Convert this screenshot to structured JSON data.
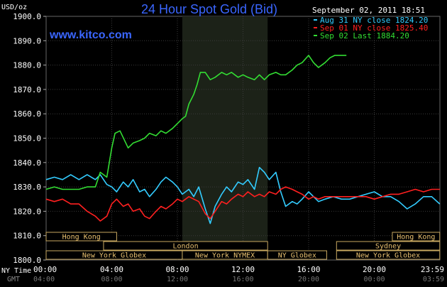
{
  "chart_data": {
    "type": "line",
    "title": "24 Hour Spot Gold (Bid)",
    "watermark": "www.kitco.com",
    "ylabel": "USD/oz",
    "ylim": [
      1800,
      1900
    ],
    "yticks": [
      "1800.0",
      "1810.0",
      "1820.0",
      "1830.0",
      "1840.0",
      "1850.0",
      "1860.0",
      "1870.0",
      "1880.0",
      "1890.0",
      "1900.0"
    ],
    "xlim": [
      0,
      24
    ],
    "x_label_rows": [
      "NY Time",
      "GMT"
    ],
    "x_ticks_ny": [
      "00:00",
      "04:00",
      "08:00",
      "12:00",
      "16:00",
      "20:00",
      "23:59"
    ],
    "x_ticks_gmt": [
      "04:00",
      "08:00",
      "12:00",
      "16:00",
      "20:00",
      "00:00",
      "03:59"
    ],
    "timestamp": "September 02, 2011 18:51",
    "highlight_range": [
      8.3,
      13.5
    ],
    "grid": true,
    "legend_position": "top-right",
    "series": [
      {
        "name": "Aug 31 NY close 1824.20",
        "color": "#33ccff",
        "points": [
          [
            0,
            1833
          ],
          [
            0.5,
            1834
          ],
          [
            1,
            1833
          ],
          [
            1.5,
            1835
          ],
          [
            2,
            1833
          ],
          [
            2.5,
            1835
          ],
          [
            3,
            1833
          ],
          [
            3.3,
            1835
          ],
          [
            3.7,
            1831
          ],
          [
            4,
            1830
          ],
          [
            4.3,
            1828
          ],
          [
            4.7,
            1832
          ],
          [
            5,
            1830
          ],
          [
            5.3,
            1833
          ],
          [
            5.7,
            1828
          ],
          [
            6,
            1829
          ],
          [
            6.3,
            1826
          ],
          [
            6.7,
            1829
          ],
          [
            7,
            1832
          ],
          [
            7.3,
            1834
          ],
          [
            7.7,
            1832
          ],
          [
            8,
            1830
          ],
          [
            8.3,
            1827
          ],
          [
            8.7,
            1829
          ],
          [
            9,
            1826
          ],
          [
            9.3,
            1830
          ],
          [
            9.7,
            1821
          ],
          [
            10,
            1815
          ],
          [
            10.3,
            1822
          ],
          [
            10.7,
            1827
          ],
          [
            11,
            1830
          ],
          [
            11.3,
            1828
          ],
          [
            11.7,
            1832
          ],
          [
            12,
            1831
          ],
          [
            12.3,
            1833
          ],
          [
            12.7,
            1829
          ],
          [
            13,
            1838
          ],
          [
            13.3,
            1836
          ],
          [
            13.6,
            1833
          ],
          [
            14,
            1836
          ],
          [
            14.3,
            1828
          ],
          [
            14.6,
            1822
          ],
          [
            15,
            1824
          ],
          [
            15.3,
            1823
          ],
          [
            15.6,
            1825
          ],
          [
            16,
            1828
          ],
          [
            16.3,
            1826
          ],
          [
            16.6,
            1824
          ],
          [
            17,
            1825
          ],
          [
            17.5,
            1826
          ],
          [
            18,
            1825
          ],
          [
            18.5,
            1825
          ],
          [
            19,
            1826
          ],
          [
            19.5,
            1827
          ],
          [
            20,
            1828
          ],
          [
            20.5,
            1826
          ],
          [
            21,
            1826
          ],
          [
            21.5,
            1824
          ],
          [
            22,
            1821
          ],
          [
            22.5,
            1823
          ],
          [
            23,
            1826
          ],
          [
            23.5,
            1826
          ],
          [
            23.99,
            1823
          ]
        ]
      },
      {
        "name": "Sep 01 NY close 1825.40",
        "color": "#ff2020",
        "points": [
          [
            0,
            1825
          ],
          [
            0.5,
            1824
          ],
          [
            1,
            1825
          ],
          [
            1.5,
            1823
          ],
          [
            2,
            1823
          ],
          [
            2.5,
            1820
          ],
          [
            3,
            1818
          ],
          [
            3.3,
            1816
          ],
          [
            3.7,
            1818
          ],
          [
            4,
            1823
          ],
          [
            4.3,
            1825
          ],
          [
            4.7,
            1822
          ],
          [
            5,
            1823
          ],
          [
            5.3,
            1820
          ],
          [
            5.7,
            1821
          ],
          [
            6,
            1818
          ],
          [
            6.3,
            1817
          ],
          [
            6.7,
            1820
          ],
          [
            7,
            1822
          ],
          [
            7.3,
            1821
          ],
          [
            7.7,
            1823
          ],
          [
            8,
            1825
          ],
          [
            8.3,
            1824
          ],
          [
            8.7,
            1826
          ],
          [
            9,
            1825
          ],
          [
            9.3,
            1824
          ],
          [
            9.7,
            1819
          ],
          [
            10,
            1817
          ],
          [
            10.3,
            1820
          ],
          [
            10.7,
            1824
          ],
          [
            11,
            1823
          ],
          [
            11.3,
            1825
          ],
          [
            11.7,
            1827
          ],
          [
            12,
            1826
          ],
          [
            12.3,
            1828
          ],
          [
            12.7,
            1826
          ],
          [
            13,
            1827
          ],
          [
            13.3,
            1826
          ],
          [
            13.6,
            1828
          ],
          [
            14,
            1827
          ],
          [
            14.3,
            1829
          ],
          [
            14.6,
            1830
          ],
          [
            15,
            1829
          ],
          [
            15.3,
            1828
          ],
          [
            15.6,
            1827
          ],
          [
            16,
            1825
          ],
          [
            16.3,
            1826
          ],
          [
            16.6,
            1825
          ],
          [
            17,
            1826
          ],
          [
            17.5,
            1826
          ],
          [
            18,
            1826
          ],
          [
            18.5,
            1826
          ],
          [
            19,
            1826
          ],
          [
            19.5,
            1826
          ],
          [
            20,
            1825
          ],
          [
            20.5,
            1826
          ],
          [
            21,
            1827
          ],
          [
            21.5,
            1827
          ],
          [
            22,
            1828
          ],
          [
            22.5,
            1829
          ],
          [
            23,
            1828
          ],
          [
            23.5,
            1829
          ],
          [
            23.99,
            1829
          ]
        ]
      },
      {
        "name": "Sep 02 Last 1884.20",
        "color": "#33dd33",
        "points": [
          [
            0,
            1829
          ],
          [
            0.5,
            1830
          ],
          [
            1,
            1829
          ],
          [
            1.5,
            1829
          ],
          [
            2,
            1829
          ],
          [
            2.5,
            1830
          ],
          [
            3,
            1830
          ],
          [
            3.3,
            1836
          ],
          [
            3.7,
            1834
          ],
          [
            4,
            1846
          ],
          [
            4.2,
            1852
          ],
          [
            4.5,
            1853
          ],
          [
            5,
            1846
          ],
          [
            5.3,
            1848
          ],
          [
            5.7,
            1849
          ],
          [
            6,
            1850
          ],
          [
            6.3,
            1852
          ],
          [
            6.7,
            1851
          ],
          [
            7,
            1853
          ],
          [
            7.3,
            1852
          ],
          [
            7.7,
            1854
          ],
          [
            8,
            1856
          ],
          [
            8.3,
            1858
          ],
          [
            8.5,
            1859
          ],
          [
            8.7,
            1864
          ],
          [
            9,
            1868
          ],
          [
            9.2,
            1872
          ],
          [
            9.4,
            1877
          ],
          [
            9.7,
            1877
          ],
          [
            10,
            1874
          ],
          [
            10.3,
            1875
          ],
          [
            10.7,
            1877
          ],
          [
            11,
            1876
          ],
          [
            11.3,
            1877
          ],
          [
            11.7,
            1875
          ],
          [
            12,
            1876
          ],
          [
            12.3,
            1875
          ],
          [
            12.7,
            1874
          ],
          [
            13,
            1876
          ],
          [
            13.3,
            1874
          ],
          [
            13.6,
            1876
          ],
          [
            14,
            1877
          ],
          [
            14.3,
            1876
          ],
          [
            14.6,
            1876
          ],
          [
            15,
            1878
          ],
          [
            15.3,
            1880
          ],
          [
            15.6,
            1881
          ],
          [
            16,
            1884
          ],
          [
            16.3,
            1881
          ],
          [
            16.6,
            1879
          ],
          [
            17,
            1881
          ],
          [
            17.3,
            1883
          ],
          [
            17.6,
            1884
          ],
          [
            18,
            1884
          ],
          [
            18.3,
            1884
          ]
        ]
      }
    ],
    "sessions": [
      {
        "label": "Hong Kong",
        "start": 0,
        "end": 4.3,
        "row": 1
      },
      {
        "label": "Hong Kong",
        "start": 21.1,
        "end": 23.99,
        "row": 1
      },
      {
        "label": "London",
        "start": 3.5,
        "end": 13.5,
        "row": 2
      },
      {
        "label": "Sydney",
        "start": 17.7,
        "end": 23.99,
        "row": 2
      },
      {
        "label": "New York Globex",
        "start": 0,
        "end": 8.3,
        "row": 3
      },
      {
        "label": "New York NYMEX",
        "start": 8.3,
        "end": 13.5,
        "row": 3
      },
      {
        "label": "NY Globex",
        "start": 13.5,
        "end": 17.1,
        "row": 3
      },
      {
        "label": "New York Globex",
        "start": 17.7,
        "end": 23.99,
        "row": 3
      }
    ]
  }
}
